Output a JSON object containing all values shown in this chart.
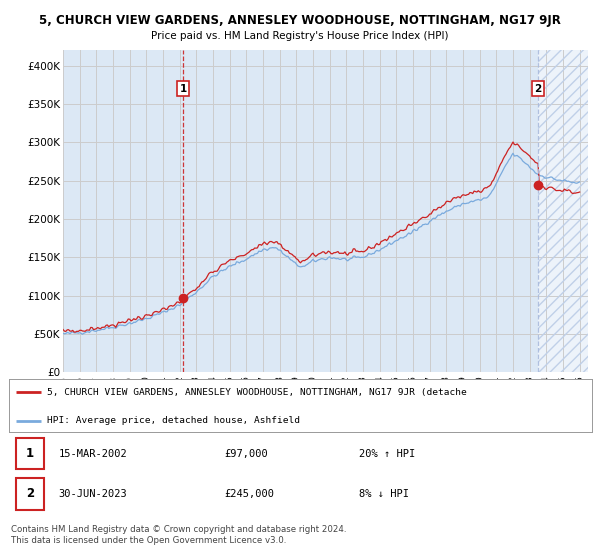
{
  "title": "5, CHURCH VIEW GARDENS, ANNESLEY WOODHOUSE, NOTTINGHAM, NG17 9JR",
  "subtitle": "Price paid vs. HM Land Registry's House Price Index (HPI)",
  "ylabel_ticks": [
    "£0",
    "£50K",
    "£100K",
    "£150K",
    "£200K",
    "£250K",
    "£300K",
    "£350K",
    "£400K"
  ],
  "ytick_values": [
    0,
    50000,
    100000,
    150000,
    200000,
    250000,
    300000,
    350000,
    400000
  ],
  "ylim": [
    0,
    420000
  ],
  "xlim_start": 1995.5,
  "xlim_end": 2026.5,
  "line1_color": "#cc2222",
  "line2_color": "#7aaadd",
  "vline1_color": "#cc2222",
  "vline2_color": "#aabbdd",
  "marker_color": "#cc2222",
  "sale1_x": 2002.21,
  "sale1_y": 97000,
  "sale2_x": 2023.5,
  "sale2_y": 245000,
  "legend_label1": "5, CHURCH VIEW GARDENS, ANNESLEY WOODHOUSE, NOTTINGHAM, NG17 9JR (detache",
  "legend_label2": "HPI: Average price, detached house, Ashfield",
  "table_row1_num": "1",
  "table_row1_date": "15-MAR-2002",
  "table_row1_price": "£97,000",
  "table_row1_hpi": "20% ↑ HPI",
  "table_row2_num": "2",
  "table_row2_date": "30-JUN-2023",
  "table_row2_price": "£245,000",
  "table_row2_hpi": "8% ↓ HPI",
  "footnote1": "Contains HM Land Registry data © Crown copyright and database right 2024.",
  "footnote2": "This data is licensed under the Open Government Licence v3.0.",
  "bg_color": "#ffffff",
  "grid_color": "#cccccc",
  "plot_bg_color": "#dce8f5",
  "future_hatch_color": "#c0d0e8"
}
